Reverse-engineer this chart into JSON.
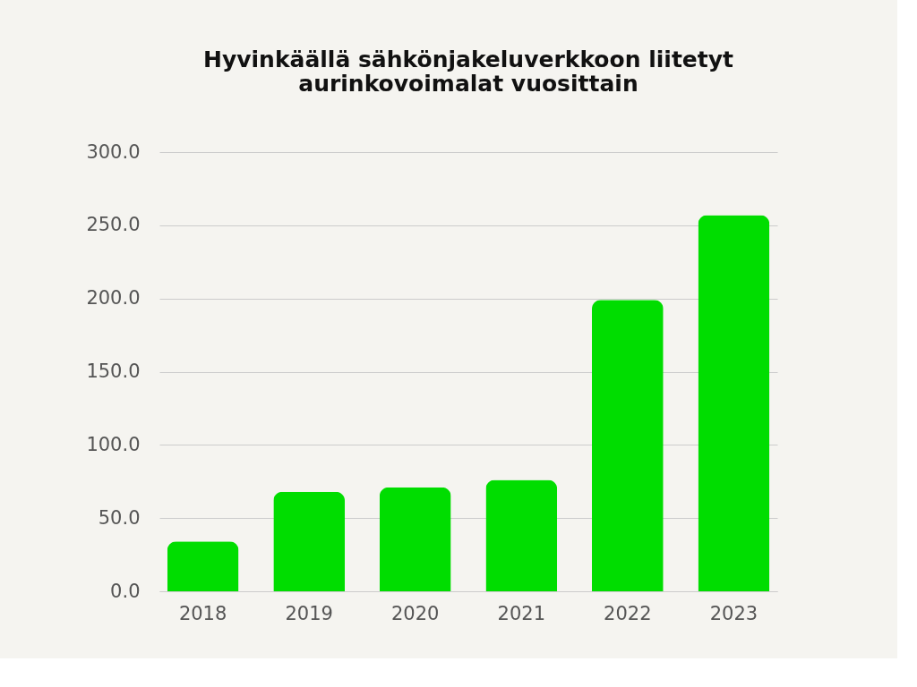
{
  "chart_data": {
    "type": "bar",
    "title": [
      "Hyvinkäällä sähkönjakeluverkkoon liitetyt",
      "aurinkovoimalat vuosittain"
    ],
    "categories": [
      "2018",
      "2019",
      "2020",
      "2021",
      "2022",
      "2023"
    ],
    "values": [
      34,
      68,
      71,
      76,
      199,
      257
    ],
    "color": "#00dd00",
    "ylim": [
      0,
      300
    ],
    "yticks": [
      {
        "value": 0,
        "label": "0.0"
      },
      {
        "value": 50,
        "label": "50.0"
      },
      {
        "value": 100,
        "label": "100.0"
      },
      {
        "value": 150,
        "label": "150.0"
      },
      {
        "value": 200,
        "label": "200.0"
      },
      {
        "value": 250,
        "label": "250.0"
      },
      {
        "value": 300,
        "label": "300.0"
      }
    ],
    "grid": "y"
  }
}
